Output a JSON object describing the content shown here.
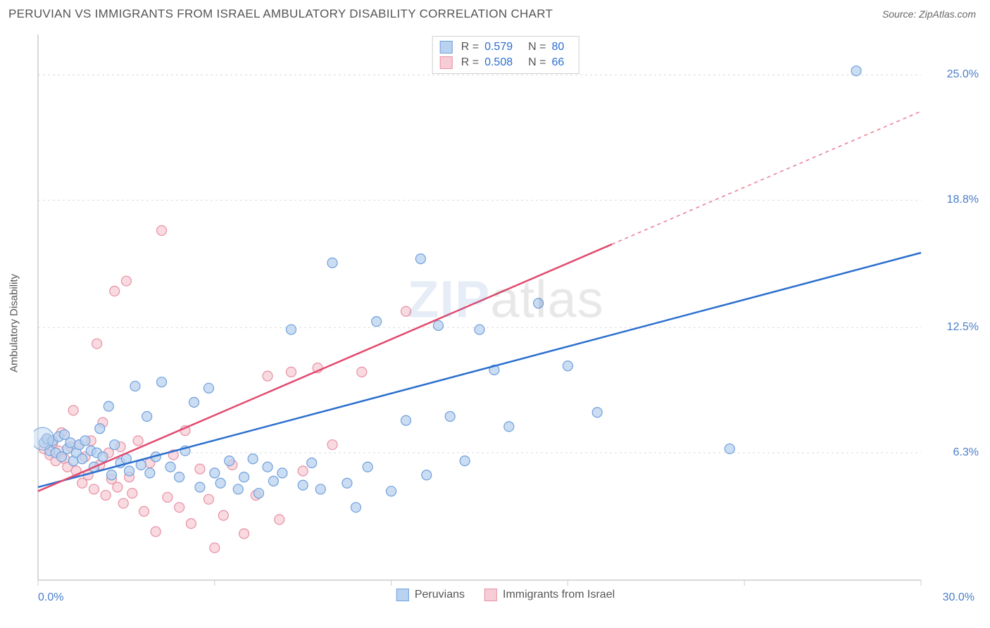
{
  "title": "PERUVIAN VS IMMIGRANTS FROM ISRAEL AMBULATORY DISABILITY CORRELATION CHART",
  "source": "Source: ZipAtlas.com",
  "y_axis_label": "Ambulatory Disability",
  "watermark_a": "ZIP",
  "watermark_b": "atlas",
  "chart": {
    "type": "scatter",
    "xlim": [
      0,
      30
    ],
    "ylim": [
      0,
      27
    ],
    "x_ticks": [
      0,
      6,
      12,
      18,
      24,
      30
    ],
    "x_tick_labels": {
      "0": "0.0%",
      "30": "30.0%"
    },
    "y_ticks": [
      6.3,
      12.5,
      18.8,
      25.0
    ],
    "y_tick_labels": [
      "6.3%",
      "12.5%",
      "18.8%",
      "25.0%"
    ],
    "grid_color": "#dcdcdc",
    "axis_color": "#cccccc",
    "background_color": "#ffffff",
    "marker_radius": 7,
    "marker_stroke_width": 1.2,
    "series": [
      {
        "name": "Peruvians",
        "fill": "#b9d2ef",
        "stroke": "#6fa0db",
        "line_color": "#2b6fce",
        "R": "0.579",
        "N": "80",
        "regression": {
          "x1": 0,
          "y1": 4.6,
          "x2": 30,
          "y2": 16.2,
          "solid_until_x": 30
        },
        "points": [
          [
            0.2,
            6.8
          ],
          [
            0.3,
            7.0
          ],
          [
            0.4,
            6.4
          ],
          [
            0.5,
            6.9
          ],
          [
            0.6,
            6.3
          ],
          [
            0.7,
            7.1
          ],
          [
            0.8,
            6.1
          ],
          [
            0.9,
            7.2
          ],
          [
            1.0,
            6.5
          ],
          [
            1.1,
            6.8
          ],
          [
            1.2,
            5.9
          ],
          [
            1.3,
            6.3
          ],
          [
            1.4,
            6.7
          ],
          [
            1.5,
            6.0
          ],
          [
            1.6,
            6.9
          ],
          [
            1.8,
            6.4
          ],
          [
            1.9,
            5.6
          ],
          [
            2.0,
            6.3
          ],
          [
            2.1,
            7.5
          ],
          [
            2.2,
            6.1
          ],
          [
            2.4,
            8.6
          ],
          [
            2.5,
            5.2
          ],
          [
            2.6,
            6.7
          ],
          [
            2.8,
            5.8
          ],
          [
            3.0,
            6.0
          ],
          [
            3.1,
            5.4
          ],
          [
            3.3,
            9.6
          ],
          [
            3.5,
            5.7
          ],
          [
            3.7,
            8.1
          ],
          [
            3.8,
            5.3
          ],
          [
            4.0,
            6.1
          ],
          [
            4.2,
            9.8
          ],
          [
            4.5,
            5.6
          ],
          [
            4.8,
            5.1
          ],
          [
            5.0,
            6.4
          ],
          [
            5.3,
            8.8
          ],
          [
            5.5,
            4.6
          ],
          [
            5.8,
            9.5
          ],
          [
            6.0,
            5.3
          ],
          [
            6.2,
            4.8
          ],
          [
            6.5,
            5.9
          ],
          [
            6.8,
            4.5
          ],
          [
            7.0,
            5.1
          ],
          [
            7.3,
            6.0
          ],
          [
            7.5,
            4.3
          ],
          [
            7.8,
            5.6
          ],
          [
            8.0,
            4.9
          ],
          [
            8.3,
            5.3
          ],
          [
            8.6,
            12.4
          ],
          [
            9.0,
            4.7
          ],
          [
            9.3,
            5.8
          ],
          [
            9.6,
            4.5
          ],
          [
            10.0,
            15.7
          ],
          [
            10.5,
            4.8
          ],
          [
            10.8,
            3.6
          ],
          [
            11.2,
            5.6
          ],
          [
            11.5,
            12.8
          ],
          [
            12.0,
            4.4
          ],
          [
            12.5,
            7.9
          ],
          [
            13.0,
            15.9
          ],
          [
            13.2,
            5.2
          ],
          [
            13.6,
            12.6
          ],
          [
            14.0,
            8.1
          ],
          [
            14.5,
            5.9
          ],
          [
            15.0,
            12.4
          ],
          [
            15.5,
            10.4
          ],
          [
            16.0,
            7.6
          ],
          [
            17.0,
            13.7
          ],
          [
            18.0,
            10.6
          ],
          [
            19.0,
            8.3
          ],
          [
            23.5,
            6.5
          ],
          [
            27.8,
            25.2
          ]
        ]
      },
      {
        "name": "Immigrants from Israel",
        "fill": "#f6cdd6",
        "stroke": "#e890a4",
        "line_color": "#e24a6e",
        "R": "0.508",
        "N": "66",
        "regression": {
          "x1": 0,
          "y1": 4.4,
          "x2": 30,
          "y2": 23.2,
          "solid_until_x": 19.5
        },
        "points": [
          [
            0.2,
            6.5
          ],
          [
            0.3,
            7.0
          ],
          [
            0.4,
            6.2
          ],
          [
            0.5,
            6.8
          ],
          [
            0.6,
            5.9
          ],
          [
            0.7,
            6.4
          ],
          [
            0.8,
            7.3
          ],
          [
            0.9,
            6.0
          ],
          [
            1.0,
            5.6
          ],
          [
            1.1,
            6.6
          ],
          [
            1.2,
            8.4
          ],
          [
            1.3,
            5.4
          ],
          [
            1.4,
            6.7
          ],
          [
            1.5,
            4.8
          ],
          [
            1.6,
            6.1
          ],
          [
            1.7,
            5.2
          ],
          [
            1.8,
            6.9
          ],
          [
            1.9,
            4.5
          ],
          [
            2.0,
            11.7
          ],
          [
            2.1,
            5.7
          ],
          [
            2.2,
            7.8
          ],
          [
            2.3,
            4.2
          ],
          [
            2.4,
            6.3
          ],
          [
            2.5,
            5.0
          ],
          [
            2.6,
            14.3
          ],
          [
            2.7,
            4.6
          ],
          [
            2.8,
            6.6
          ],
          [
            2.9,
            3.8
          ],
          [
            3.0,
            14.8
          ],
          [
            3.1,
            5.1
          ],
          [
            3.2,
            4.3
          ],
          [
            3.4,
            6.9
          ],
          [
            3.6,
            3.4
          ],
          [
            3.8,
            5.8
          ],
          [
            4.0,
            2.4
          ],
          [
            4.2,
            17.3
          ],
          [
            4.4,
            4.1
          ],
          [
            4.6,
            6.2
          ],
          [
            4.8,
            3.6
          ],
          [
            5.0,
            7.4
          ],
          [
            5.2,
            2.8
          ],
          [
            5.5,
            5.5
          ],
          [
            5.8,
            4.0
          ],
          [
            6.0,
            1.6
          ],
          [
            6.3,
            3.2
          ],
          [
            6.6,
            5.7
          ],
          [
            7.0,
            2.3
          ],
          [
            7.4,
            4.2
          ],
          [
            7.8,
            10.1
          ],
          [
            8.2,
            3.0
          ],
          [
            8.6,
            10.3
          ],
          [
            9.0,
            5.4
          ],
          [
            9.5,
            10.5
          ],
          [
            10.0,
            6.7
          ],
          [
            11.0,
            10.3
          ],
          [
            12.5,
            13.3
          ]
        ]
      }
    ]
  },
  "legend_bottom": [
    {
      "label": "Peruvians",
      "fill": "#b9d2ef",
      "stroke": "#6fa0db"
    },
    {
      "label": "Immigrants from Israel",
      "fill": "#f6cdd6",
      "stroke": "#e890a4"
    }
  ]
}
